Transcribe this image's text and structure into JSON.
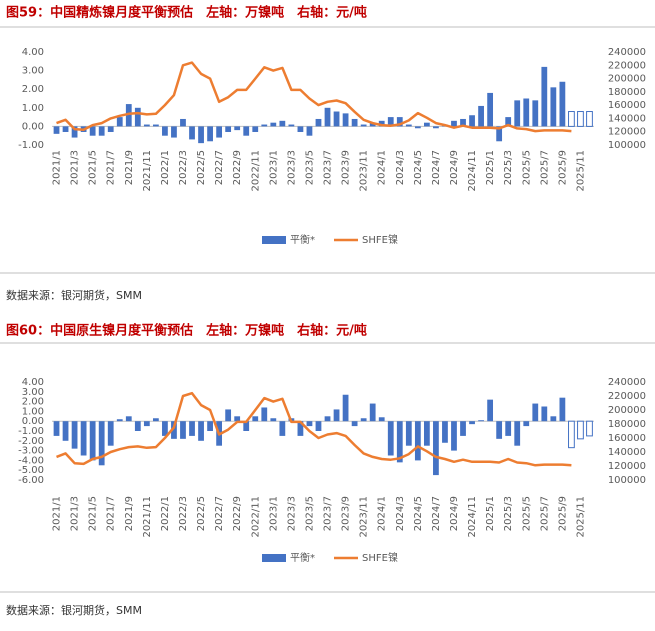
{
  "chart_data": [
    {
      "type": "bar_line",
      "title": "图59：中国精炼镍月度平衡预估　左轴：万镍吨　右轴：元/吨",
      "source": "数据来源：银河期货，SMM",
      "categories": [
        "2021/1",
        null,
        "2021/3",
        null,
        "2021/5",
        null,
        "2021/7",
        null,
        "2021/9",
        null,
        "2021/11",
        null,
        "2022/1",
        null,
        "2022/3",
        null,
        "2022/5",
        null,
        "2022/7",
        null,
        "2022/9",
        null,
        "2022/11",
        null,
        "2023/1",
        null,
        "2023/3",
        null,
        "2023/5",
        null,
        "2023/7",
        null,
        "2023/9",
        null,
        "2023/11",
        null,
        "2024/1",
        null,
        "2024/3",
        null,
        "2024/5",
        null,
        "2024/7",
        null,
        "2024/9",
        null,
        "2024/11",
        null,
        "2025/1",
        null,
        "2025/3",
        null,
        "2025/5",
        null,
        "2025/7",
        null,
        "2025/9",
        null,
        "2025/11",
        null
      ],
      "series": [
        {
          "name": "平衡*",
          "type": "bar",
          "color": "#4472c4",
          "values": [
            -0.4,
            -0.3,
            -0.6,
            -0.3,
            -0.5,
            -0.5,
            -0.3,
            0.5,
            1.2,
            1.0,
            0.1,
            0.1,
            -0.5,
            -0.6,
            0.4,
            -0.7,
            -0.9,
            -0.8,
            -0.6,
            -0.3,
            -0.2,
            -0.5,
            -0.3,
            0.1,
            0.2,
            0.3,
            0.1,
            -0.3,
            -0.5,
            0.4,
            1.0,
            0.8,
            0.7,
            0.4,
            0.1,
            0.2,
            0.3,
            0.5,
            0.5,
            0.1,
            -0.1,
            0.2,
            -0.1,
            0.1,
            0.3,
            0.4,
            0.6,
            1.1,
            1.8,
            -0.8,
            0.5,
            1.4,
            1.5,
            1.4,
            3.2,
            2.1,
            2.4,
            0.8,
            0.8,
            0.8
          ],
          "styles": [
            "solid",
            "solid",
            "solid",
            "solid",
            "solid",
            "solid",
            "solid",
            "solid",
            "solid",
            "solid",
            "solid",
            "solid",
            "solid",
            "solid",
            "solid",
            "solid",
            "solid",
            "solid",
            "solid",
            "solid",
            "solid",
            "solid",
            "solid",
            "solid",
            "solid",
            "solid",
            "solid",
            "solid",
            "solid",
            "solid",
            "solid",
            "solid",
            "solid",
            "solid",
            "solid",
            "solid",
            "solid",
            "solid",
            "solid",
            "solid",
            "solid",
            "solid",
            "solid",
            "solid",
            "solid",
            "solid",
            "solid",
            "solid",
            "solid",
            "solid",
            "solid",
            "solid",
            "solid",
            "solid",
            "solid",
            "solid",
            "solid",
            "hollow",
            "hollow",
            "hollow"
          ]
        },
        {
          "name": "SHFE镍",
          "type": "line",
          "axis": "y2",
          "color": "#ed7d31",
          "values": [
            133000,
            138000,
            124000,
            123000,
            130000,
            133000,
            140000,
            144000,
            147000,
            148000,
            146000,
            147000,
            160000,
            175000,
            220000,
            224000,
            207000,
            200000,
            165000,
            172000,
            183000,
            183000,
            200000,
            217000,
            212000,
            216000,
            183000,
            183000,
            170000,
            160000,
            165000,
            167000,
            163000,
            150000,
            138000,
            133000,
            130000,
            129000,
            131000,
            137000,
            148000,
            141000,
            133000,
            130000,
            126000,
            129000,
            126000,
            126000,
            126000,
            125000,
            130000,
            125000,
            124000,
            121000,
            122000,
            122000,
            122000,
            121000,
            null,
            null
          ]
        }
      ],
      "ylim": [
        -1,
        4
      ],
      "yticks": [
        {
          "value": -1,
          "label": "-1.00"
        },
        {
          "value": 0,
          "label": "0.00"
        },
        {
          "value": 1,
          "label": "1.00"
        },
        {
          "value": 2,
          "label": "2.00"
        },
        {
          "value": 3,
          "label": "3.00"
        },
        {
          "value": 4,
          "label": "4.00"
        }
      ],
      "y2lim": [
        100000,
        240000
      ],
      "y2ticks": [
        100000,
        120000,
        140000,
        160000,
        180000,
        200000,
        220000,
        240000
      ],
      "legend": "bottom"
    },
    {
      "type": "bar_line",
      "title": "图60：中国原生镍月度平衡预估　左轴：万镍吨　右轴：元/吨",
      "source": "数据来源：银河期货，SMM",
      "categories": [
        "2021/1",
        null,
        "2021/3",
        null,
        "2021/5",
        null,
        "2021/7",
        null,
        "2021/9",
        null,
        "2021/11",
        null,
        "2022/1",
        null,
        "2022/3",
        null,
        "2022/5",
        null,
        "2022/7",
        null,
        "2022/9",
        null,
        "2022/11",
        null,
        "2023/1",
        null,
        "2023/3",
        null,
        "2023/5",
        null,
        "2023/7",
        null,
        "2023/9",
        null,
        "2023/11",
        null,
        "2024/1",
        null,
        "2024/3",
        null,
        "2024/5",
        null,
        "2024/7",
        null,
        "2024/9",
        null,
        "2024/11",
        null,
        "2025/1",
        null,
        "2025/3",
        null,
        "2025/5",
        null,
        "2025/7",
        null,
        "2025/9",
        null,
        "2025/11",
        null
      ],
      "series": [
        {
          "name": "平衡*",
          "type": "bar",
          "color": "#4472c4",
          "values": [
            -1.5,
            -2.0,
            -2.8,
            -3.5,
            -4.0,
            -4.5,
            -2.5,
            0.2,
            0.5,
            -1.0,
            -0.5,
            0.3,
            -1.5,
            -1.8,
            -1.8,
            -1.5,
            -2.0,
            -1.0,
            -2.5,
            1.2,
            0.5,
            -1.0,
            0.5,
            1.4,
            0.3,
            -1.5,
            0.3,
            -1.5,
            -0.5,
            -1.0,
            0.5,
            1.2,
            2.7,
            -0.5,
            0.3,
            1.8,
            0.4,
            -3.5,
            -4.2,
            -2.5,
            -4.0,
            -2.5,
            -5.5,
            -2.2,
            -3.0,
            -1.5,
            -0.3,
            0.1,
            2.2,
            -1.8,
            -1.5,
            -2.5,
            -0.5,
            1.8,
            1.5,
            0.5,
            2.4,
            -2.7,
            -1.8,
            -1.5
          ],
          "styles": [
            "solid",
            "solid",
            "solid",
            "solid",
            "solid",
            "solid",
            "solid",
            "solid",
            "solid",
            "solid",
            "solid",
            "solid",
            "solid",
            "solid",
            "solid",
            "solid",
            "solid",
            "solid",
            "solid",
            "solid",
            "solid",
            "solid",
            "solid",
            "solid",
            "solid",
            "solid",
            "solid",
            "solid",
            "solid",
            "solid",
            "solid",
            "solid",
            "solid",
            "solid",
            "solid",
            "solid",
            "solid",
            "solid",
            "solid",
            "solid",
            "solid",
            "solid",
            "solid",
            "solid",
            "solid",
            "solid",
            "solid",
            "solid",
            "solid",
            "solid",
            "solid",
            "solid",
            "solid",
            "solid",
            "solid",
            "solid",
            "solid",
            "hollow",
            "hollow",
            "hollow"
          ]
        },
        {
          "name": "SHFE镍",
          "type": "line",
          "axis": "y2",
          "color": "#ed7d31",
          "values": [
            133000,
            138000,
            124000,
            123000,
            130000,
            133000,
            140000,
            144000,
            147000,
            148000,
            146000,
            147000,
            160000,
            175000,
            220000,
            224000,
            207000,
            200000,
            165000,
            172000,
            183000,
            183000,
            200000,
            217000,
            212000,
            216000,
            183000,
            183000,
            170000,
            160000,
            165000,
            167000,
            163000,
            150000,
            138000,
            133000,
            130000,
            129000,
            131000,
            137000,
            148000,
            141000,
            133000,
            130000,
            126000,
            129000,
            126000,
            126000,
            126000,
            125000,
            130000,
            125000,
            124000,
            121000,
            122000,
            122000,
            122000,
            121000,
            null,
            null
          ]
        }
      ],
      "ylim": [
        -6,
        4
      ],
      "yticks": [
        {
          "value": -6,
          "label": "-6.00"
        },
        {
          "value": -5,
          "label": "-5.00"
        },
        {
          "value": -4,
          "label": "-4.00"
        },
        {
          "value": -3,
          "label": "-3.00"
        },
        {
          "value": -2,
          "label": "-2.00"
        },
        {
          "value": -1,
          "label": "-1.00"
        },
        {
          "value": 0,
          "label": "0.00"
        },
        {
          "value": 1,
          "label": "1.00"
        },
        {
          "value": 2,
          "label": "2.00"
        },
        {
          "value": 3,
          "label": "3.00"
        },
        {
          "value": 4,
          "label": "4.00"
        }
      ],
      "y2lim": [
        100000,
        240000
      ],
      "y2ticks": [
        100000,
        120000,
        140000,
        160000,
        180000,
        200000,
        220000,
        240000
      ],
      "legend": "bottom"
    }
  ]
}
